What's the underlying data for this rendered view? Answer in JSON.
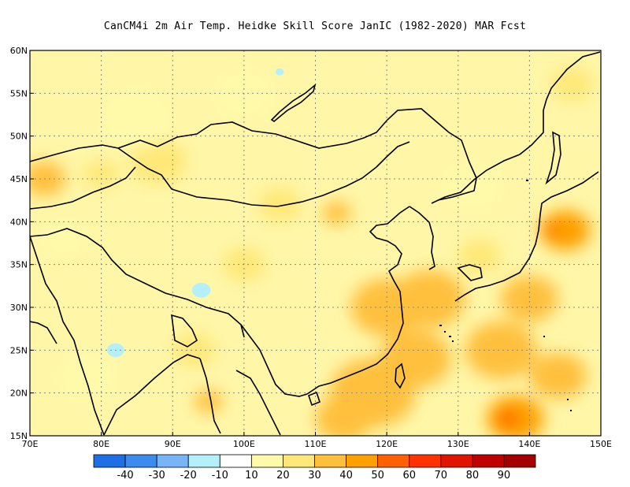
{
  "title": "CanCM4i  2m Air Temp. Heidke Skill Score JanIC (1982-2020) MAR Fcst",
  "map": {
    "lon_range": [
      70,
      150
    ],
    "lat_range": [
      15,
      60
    ],
    "lon_ticks": [
      {
        "value": 70,
        "label": "70E"
      },
      {
        "value": 80,
        "label": "80E"
      },
      {
        "value": 90,
        "label": "90E"
      },
      {
        "value": 100,
        "label": "100E"
      },
      {
        "value": 110,
        "label": "110E"
      },
      {
        "value": 120,
        "label": "120E"
      },
      {
        "value": 130,
        "label": "130E"
      },
      {
        "value": 140,
        "label": "140E"
      },
      {
        "value": 150,
        "label": "150E"
      }
    ],
    "lat_ticks": [
      {
        "value": 15,
        "label": "15N"
      },
      {
        "value": 20,
        "label": "20N"
      },
      {
        "value": 25,
        "label": "25N"
      },
      {
        "value": 30,
        "label": "30N"
      },
      {
        "value": 35,
        "label": "35N"
      },
      {
        "value": 40,
        "label": "40N"
      },
      {
        "value": 45,
        "label": "45N"
      },
      {
        "value": 50,
        "label": "50N"
      },
      {
        "value": 55,
        "label": "55N"
      },
      {
        "value": 60,
        "label": "60N"
      }
    ],
    "grid": "dotted"
  },
  "colorbar": {
    "colors": [
      "#1e6ee6",
      "#3c8cf0",
      "#78b4f8",
      "#b4f0fa",
      "#ffffff",
      "#fffaaa",
      "#ffe878",
      "#ffc03c",
      "#ffa000",
      "#ff6000",
      "#ff3200",
      "#e11400",
      "#c00000",
      "#a50000"
    ],
    "labels": [
      "-40",
      "-30",
      "-20",
      "-10",
      "10",
      "20",
      "30",
      "40",
      "50",
      "60",
      "70",
      "80",
      "90"
    ]
  },
  "skill_patches": [
    {
      "lon": 72,
      "lat": 45,
      "r": 3,
      "level": 3
    },
    {
      "lon": 80,
      "lat": 45.5,
      "r": 2.5,
      "level": 2
    },
    {
      "lon": 88,
      "lat": 47,
      "r": 4,
      "level": 2
    },
    {
      "lon": 75,
      "lat": 38,
      "r": 3,
      "level": 1
    },
    {
      "lon": 85,
      "lat": 52,
      "r": 5,
      "level": 1
    },
    {
      "lon": 100,
      "lat": 55,
      "r": 4,
      "level": 1
    },
    {
      "lon": 105,
      "lat": 42,
      "r": 3,
      "level": 2
    },
    {
      "lon": 113,
      "lat": 41,
      "r": 2,
      "level": 3
    },
    {
      "lon": 100,
      "lat": 35,
      "r": 3,
      "level": 2
    },
    {
      "lon": 93,
      "lat": 25,
      "r": 3,
      "level": 2
    },
    {
      "lon": 95,
      "lat": 19,
      "r": 2,
      "level": 3
    },
    {
      "lon": 78,
      "lat": 22,
      "r": 4,
      "level": 1
    },
    {
      "lon": 120,
      "lat": 30,
      "r": 5,
      "level": 3
    },
    {
      "lon": 126,
      "lat": 31,
      "r": 5,
      "level": 3
    },
    {
      "lon": 124,
      "lat": 24,
      "r": 5,
      "level": 3
    },
    {
      "lon": 118,
      "lat": 20,
      "r": 6,
      "level": 3
    },
    {
      "lon": 114,
      "lat": 17,
      "r": 4,
      "level": 3
    },
    {
      "lon": 136,
      "lat": 25,
      "r": 5,
      "level": 3
    },
    {
      "lon": 140,
      "lat": 31,
      "r": 4,
      "level": 3
    },
    {
      "lon": 144,
      "lat": 22,
      "r": 4,
      "level": 3
    },
    {
      "lon": 138,
      "lat": 17,
      "r": 4,
      "level": 4
    },
    {
      "lon": 137,
      "lat": 17,
      "r": 1.2,
      "level": 6
    },
    {
      "lon": 145,
      "lat": 39,
      "r": 3.5,
      "level": 4
    },
    {
      "lon": 143,
      "lat": 39,
      "r": 1,
      "level": 5
    },
    {
      "lon": 146,
      "lat": 56,
      "r": 3,
      "level": 2
    },
    {
      "lon": 132,
      "lat": 44,
      "r": 4,
      "level": 1
    },
    {
      "lon": 133,
      "lat": 36,
      "r": 3,
      "level": 2
    }
  ],
  "negative_patches": [
    {
      "lon": 94,
      "lat": 32,
      "r": 1.3,
      "level": -1
    },
    {
      "lon": 82,
      "lat": 25,
      "r": 1.2,
      "level": -1
    },
    {
      "lon": 105,
      "lat": 57.5,
      "r": 0.6,
      "level": -1
    }
  ]
}
